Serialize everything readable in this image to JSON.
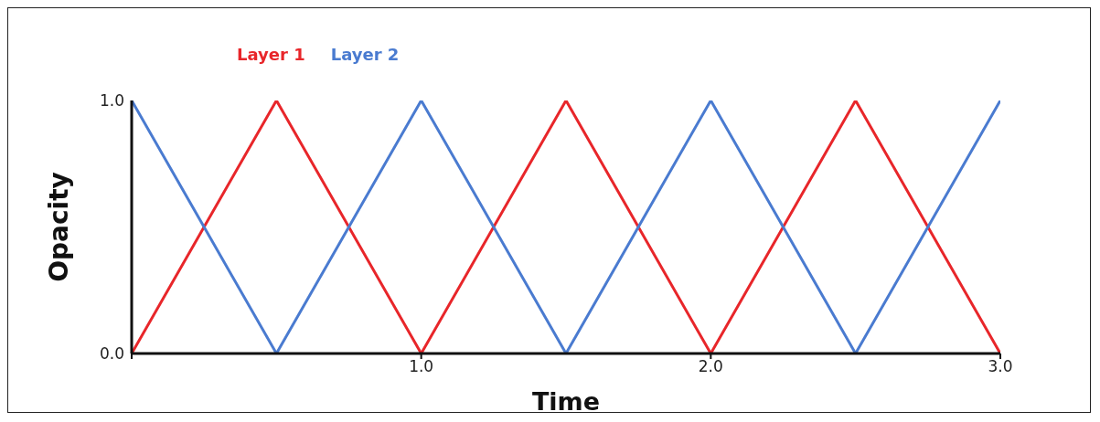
{
  "chart_data": {
    "type": "line",
    "xlabel": "Time",
    "ylabel": "Opacity",
    "x": [
      0,
      0.5,
      1,
      1.5,
      2,
      2.5,
      3
    ],
    "series": [
      {
        "name": "Layer 1",
        "color": "#e8262a",
        "values": [
          0,
          1,
          0,
          1,
          0,
          1,
          0
        ]
      },
      {
        "name": "Layer 2",
        "color": "#4a7bd0",
        "values": [
          1,
          0,
          1,
          0,
          1,
          0,
          1
        ]
      }
    ],
    "xlim": [
      0,
      3
    ],
    "xticks": [
      {
        "value": 0,
        "label": null
      },
      {
        "value": 1,
        "label": "1.0"
      },
      {
        "value": 2,
        "label": "2.0"
      },
      {
        "value": 3,
        "label": "3.0"
      }
    ],
    "ylim": [
      0,
      1
    ],
    "yticks": [
      {
        "value": 0,
        "label": "0.0"
      },
      {
        "value": 1,
        "label": "1.0"
      }
    ],
    "grid": false,
    "legend": "top left",
    "marker": "none",
    "line_style": "solid"
  }
}
